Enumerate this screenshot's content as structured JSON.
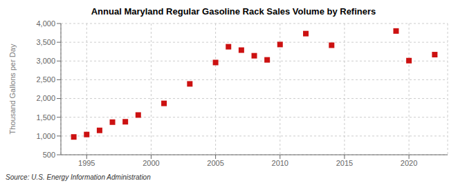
{
  "chart_data": {
    "type": "scatter",
    "title": "Annual Maryland Regular Gasoline Rack Sales Volume by Refiners",
    "ylabel": "Thousand Gallons per Day",
    "annotation": "Source: U.S. Energy Information Administration",
    "x": [
      1994,
      1995,
      1996,
      1997,
      1998,
      1999,
      2001,
      2003,
      2005,
      2006,
      2007,
      2008,
      2009,
      2010,
      2012,
      2014,
      2019,
      2020,
      2022
    ],
    "values": [
      975,
      1040,
      1150,
      1370,
      1380,
      1560,
      1870,
      2390,
      2960,
      3380,
      3290,
      3140,
      3030,
      3440,
      3730,
      3420,
      3800,
      3010,
      3170
    ],
    "color": "#cc1111",
    "marker": "square",
    "xlim": [
      1993.0,
      2023.0
    ],
    "ylim": [
      500,
      4000
    ],
    "xticks": [
      1995,
      2000,
      2005,
      2010,
      2015,
      2020
    ],
    "yticks": [
      500,
      {
        "value": 1000,
        "label": "1,000"
      },
      {
        "value": 1500,
        "label": "1,500"
      },
      {
        "value": 2000,
        "label": "2,000"
      },
      {
        "value": 2500,
        "label": "2,500"
      },
      {
        "value": 3000,
        "label": "3,000"
      },
      {
        "value": 3500,
        "label": "3,500"
      },
      {
        "value": 4000,
        "label": "4,000"
      }
    ],
    "grid": true
  }
}
